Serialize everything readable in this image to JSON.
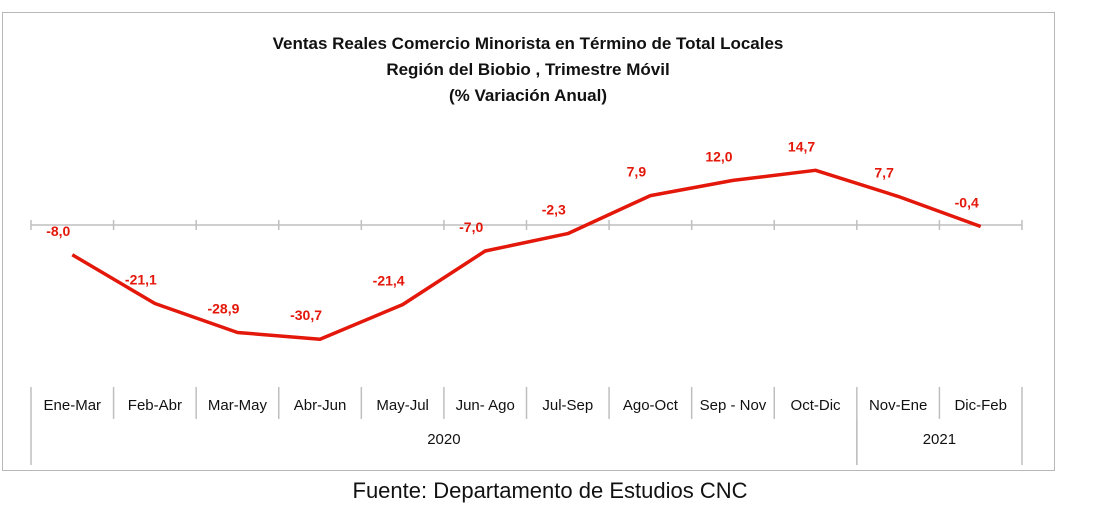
{
  "chart_data": {
    "type": "line",
    "title_lines": [
      "Ventas Reales Comercio Minorista  en Término de Total Locales",
      "Región del Biobio , Trimestre Móvil",
      "(% Variación Anual)"
    ],
    "categories": [
      "Ene-Mar",
      "Feb-Abr",
      "Mar-May",
      "Abr-Jun",
      "May-Jul",
      "Jun- Ago",
      "Jul-Sep",
      "Ago-Oct",
      "Sep - Nov",
      "Oct-Dic",
      "Nov-Ene",
      "Dic-Feb"
    ],
    "groups": [
      {
        "label": "2020",
        "start": 0,
        "end": 9
      },
      {
        "label": "2021",
        "start": 10,
        "end": 11
      }
    ],
    "series": [
      {
        "values": [
          -8.0,
          -21.1,
          -28.9,
          -30.7,
          -21.4,
          -7.0,
          -2.3,
          7.9,
          12.0,
          14.7,
          7.7,
          -0.4
        ],
        "labels": [
          "-8,0",
          "-21,1",
          "-28,9",
          "-30,7",
          "-21,4",
          "-7,0",
          "-2,3",
          "7,9",
          "12,0",
          "14,7",
          "7,7",
          "-0,4"
        ],
        "color": "#e3170a"
      }
    ],
    "ylim": [
      -32,
      16
    ],
    "grid": false,
    "legend": "none"
  },
  "source": "Fuente: Departamento de Estudios CNC"
}
